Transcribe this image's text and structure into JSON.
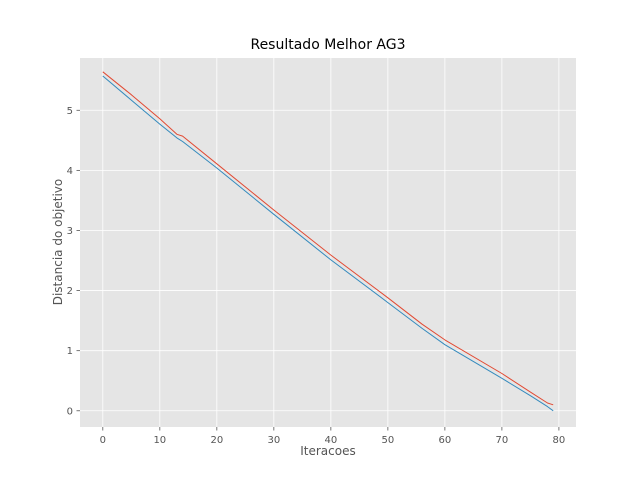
{
  "chart_data": {
    "type": "line",
    "title": "Resultado Melhor AG3",
    "xlabel": "Iteracoes",
    "ylabel": "Distancia do objetivo",
    "xlim": [
      -4,
      83
    ],
    "ylim": [
      -0.27,
      5.87
    ],
    "xticks": [
      0,
      10,
      20,
      30,
      40,
      50,
      60,
      70,
      80
    ],
    "yticks": [
      0,
      1,
      2,
      3,
      4,
      5
    ],
    "grid": true,
    "background": "#e5e5e5",
    "grid_color": "#ffffff",
    "series": [
      {
        "color": "#e24a33",
        "x": [
          0,
          5,
          10,
          13,
          14,
          20,
          30,
          40,
          50,
          56,
          60,
          70,
          75,
          78,
          79
        ],
        "y": [
          5.64,
          5.26,
          4.86,
          4.6,
          4.57,
          4.11,
          3.34,
          2.59,
          1.88,
          1.44,
          1.18,
          0.62,
          0.31,
          0.13,
          0.1
        ]
      },
      {
        "color": "#348abd",
        "x": [
          0,
          5,
          10,
          13,
          14,
          20,
          30,
          40,
          50,
          56,
          60,
          70,
          75,
          78,
          79
        ],
        "y": [
          5.57,
          5.17,
          4.77,
          4.54,
          4.48,
          4.04,
          3.27,
          2.51,
          1.8,
          1.37,
          1.1,
          0.54,
          0.25,
          0.07,
          0.0
        ]
      }
    ]
  }
}
